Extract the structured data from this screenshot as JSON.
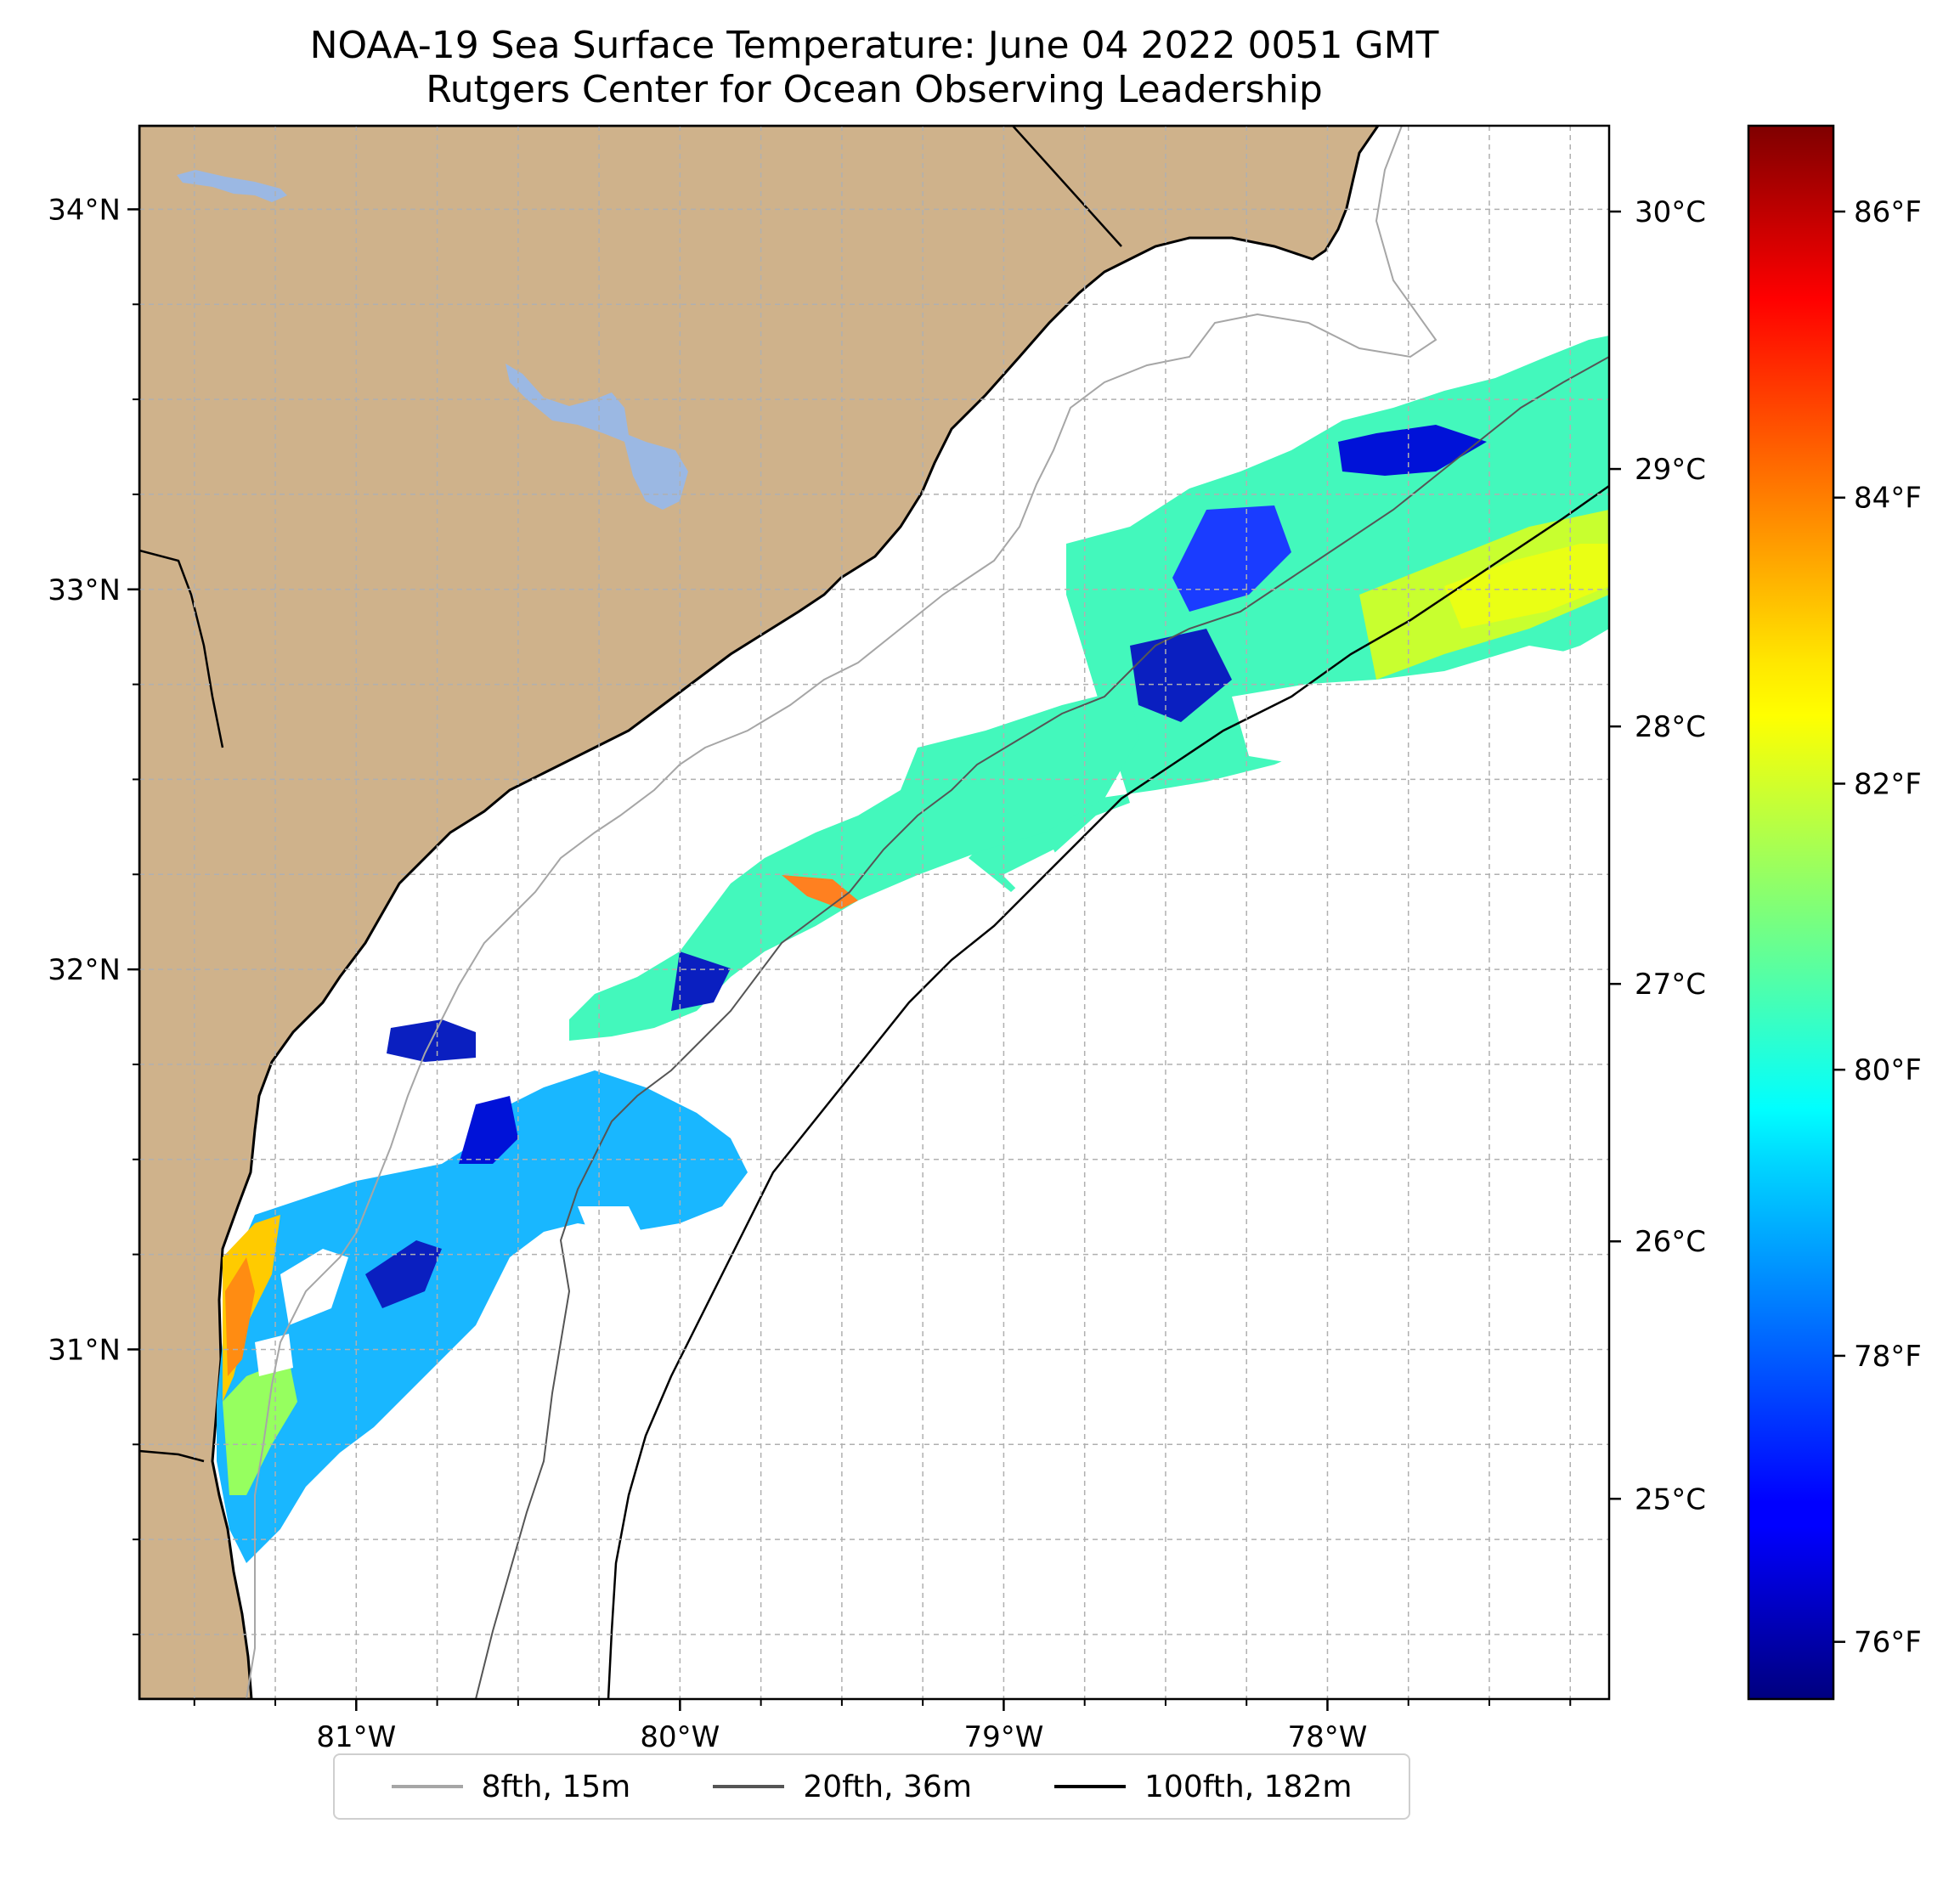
{
  "title_line1": "NOAA-19 Sea Surface Temperature: June 04 2022 0051 GMT",
  "title_line2": "Rutgers Center for Ocean Observing Leadership",
  "chart_data": {
    "type": "heatmap",
    "map_extent": {
      "lon": [
        -81.67,
        -77.13
      ],
      "lat": [
        30.08,
        34.22
      ]
    },
    "x_ticks": [
      {
        "value": -81,
        "label": "81°W"
      },
      {
        "value": -80,
        "label": "80°W"
      },
      {
        "value": -79,
        "label": "79°W"
      },
      {
        "value": -78,
        "label": "78°W"
      }
    ],
    "y_ticks": [
      {
        "value": 31,
        "label": "31°N"
      },
      {
        "value": 32,
        "label": "32°N"
      },
      {
        "value": 33,
        "label": "33°N"
      },
      {
        "value": 34,
        "label": "34°N"
      }
    ],
    "grid": true,
    "colorbar": {
      "colormap": "jet",
      "range_f": [
        75.6,
        86.6
      ],
      "celsius_ticks": [
        {
          "value": 30,
          "label": "30°C"
        },
        {
          "value": 29,
          "label": "29°C"
        },
        {
          "value": 28,
          "label": "28°C"
        },
        {
          "value": 27,
          "label": "27°C"
        },
        {
          "value": 26,
          "label": "26°C"
        },
        {
          "value": 25,
          "label": "25°C"
        }
      ],
      "fahrenheit_ticks": [
        {
          "value": 86,
          "label": "86°F"
        },
        {
          "value": 84,
          "label": "84°F"
        },
        {
          "value": 82,
          "label": "82°F"
        },
        {
          "value": 80,
          "label": "80°F"
        },
        {
          "value": 78,
          "label": "78°F"
        },
        {
          "value": 76,
          "label": "76°F"
        }
      ]
    },
    "legend": {
      "placement": "bottom",
      "entries": [
        {
          "label": "8fth, 15m",
          "color": "#a6a6a6"
        },
        {
          "label": "20fth, 36m",
          "color": "#555555"
        },
        {
          "label": "100fth, 182m",
          "color": "#000000"
        }
      ]
    },
    "colors": {
      "land": "#cfb28b",
      "water_body": "#9bb8e3"
    }
  }
}
